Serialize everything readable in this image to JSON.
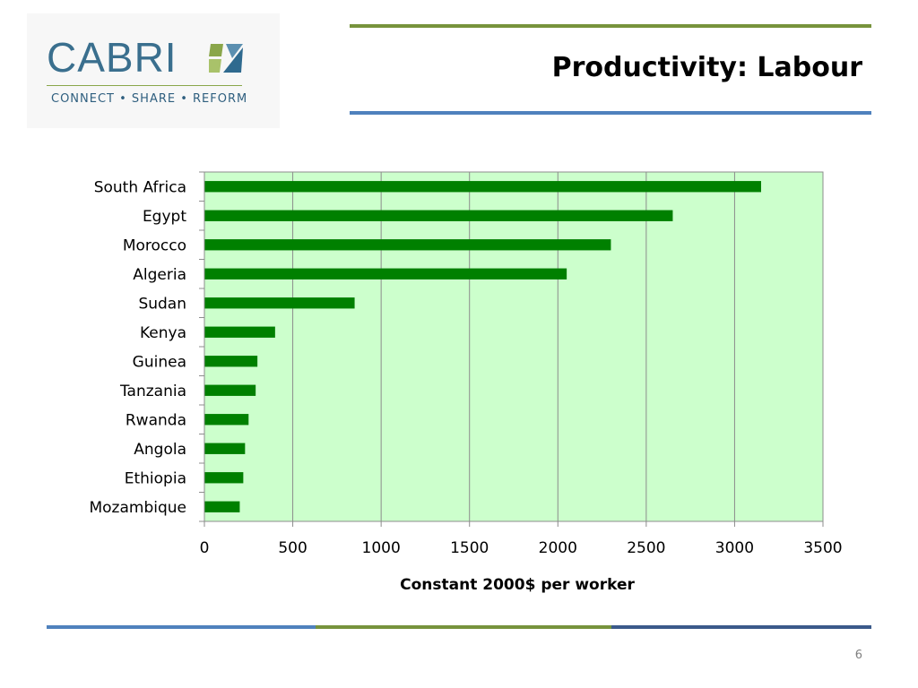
{
  "logo": {
    "wordmark": "CABRI",
    "tagline": "CONNECT • SHARE • REFORM"
  },
  "slide": {
    "title": "Productivity: Labour",
    "page_number": "6"
  },
  "colors": {
    "plot_background": "#ccffcc",
    "bar": "#008000",
    "rule_green": "#77933c",
    "rule_blue": "#4f81bd",
    "rule_navy": "#3b5a8a"
  },
  "chart_data": {
    "type": "bar",
    "orientation": "horizontal",
    "title": "",
    "xlabel": "Constant 2000$ per worker",
    "ylabel": "",
    "xlim": [
      0,
      3500
    ],
    "xticks": [
      0,
      500,
      1000,
      1500,
      2000,
      2500,
      3000,
      3500
    ],
    "grid": true,
    "categories": [
      "South Africa",
      "Egypt",
      "Morocco",
      "Algeria",
      "Sudan",
      "Kenya",
      "Guinea",
      "Tanzania",
      "Rwanda",
      "Angola",
      "Ethiopia",
      "Mozambique"
    ],
    "values": [
      3150,
      2650,
      2300,
      2050,
      850,
      400,
      300,
      290,
      250,
      230,
      220,
      200
    ]
  }
}
